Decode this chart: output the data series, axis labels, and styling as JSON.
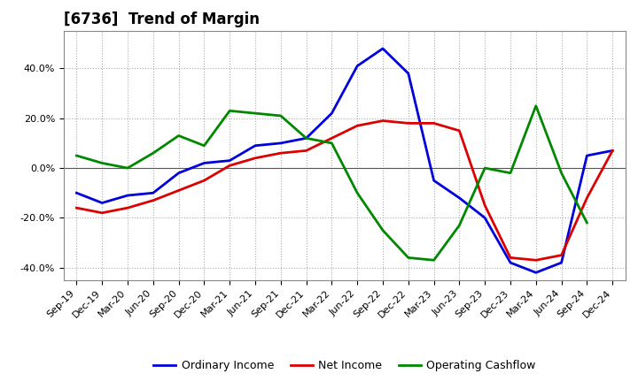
{
  "title": "[6736]  Trend of Margin",
  "x_labels": [
    "Sep-19",
    "Dec-19",
    "Mar-20",
    "Jun-20",
    "Sep-20",
    "Dec-20",
    "Mar-21",
    "Jun-21",
    "Sep-21",
    "Dec-21",
    "Mar-22",
    "Jun-22",
    "Sep-22",
    "Dec-22",
    "Mar-23",
    "Jun-23",
    "Sep-23",
    "Dec-23",
    "Mar-24",
    "Jun-24",
    "Sep-24",
    "Dec-24"
  ],
  "ordinary_income": [
    -10,
    -14,
    -11,
    -10,
    -2,
    2,
    3,
    9,
    10,
    12,
    22,
    41,
    48,
    38,
    -5,
    -12,
    -20,
    -38,
    -42,
    -38,
    5,
    7
  ],
  "net_income": [
    -16,
    -18,
    -16,
    -13,
    -9,
    -5,
    1,
    4,
    6,
    7,
    12,
    17,
    19,
    18,
    18,
    15,
    -15,
    -36,
    -37,
    -35,
    -12,
    7
  ],
  "operating_cashflow": [
    5,
    2,
    0,
    6,
    13,
    9,
    23,
    22,
    21,
    12,
    10,
    -10,
    -25,
    -36,
    -37,
    -23,
    0,
    -2,
    25,
    -2,
    -22,
    null
  ],
  "ylim": [
    -45,
    55
  ],
  "yticks": [
    -40,
    -20,
    0,
    20,
    40
  ],
  "line_colors": {
    "ordinary_income": "#0000dd",
    "net_income": "#dd0000",
    "operating_cashflow": "#008800"
  },
  "line_width": 2.0,
  "background_color": "#ffffff",
  "grid_color": "#aaaaaa",
  "legend_labels": [
    "Ordinary Income",
    "Net Income",
    "Operating Cashflow"
  ],
  "title_fontsize": 12,
  "tick_fontsize": 8
}
